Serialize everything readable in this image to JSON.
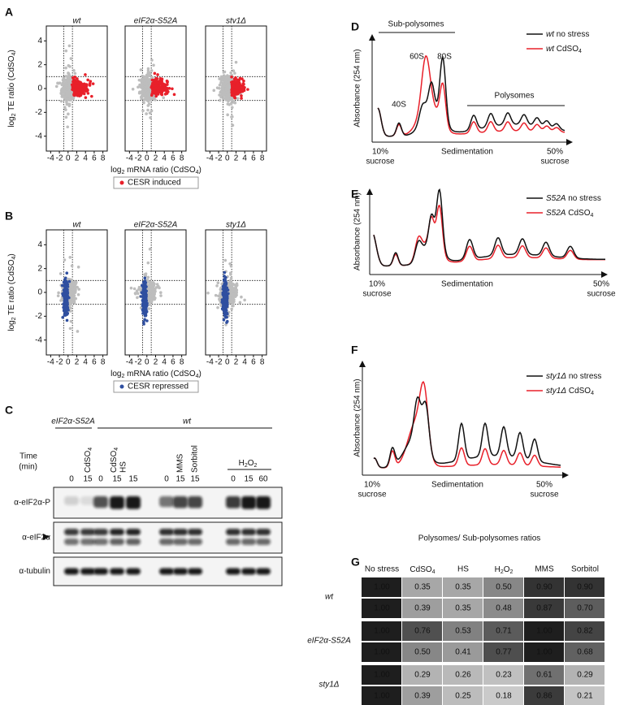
{
  "panel_a": {
    "label": "A",
    "titles": [
      "wt",
      "eIF2α-S52A",
      "stv1Δ"
    ],
    "y_label": [
      "log",
      "2",
      " TE ratio (CdSO",
      "4",
      ")"
    ],
    "x_label": [
      "log",
      "2",
      " mRNA ratio (CdSO",
      "4",
      ")"
    ],
    "yticks": [
      "4",
      "2",
      "0",
      "-2",
      "-4"
    ],
    "xticks": [
      "-4",
      "-2",
      "0",
      "2",
      "4",
      "6",
      "8"
    ],
    "legend": "CESR induced"
  },
  "panel_b": {
    "label": "B",
    "titles": [
      "wt",
      "eIF2α-S52A",
      "sty1Δ"
    ],
    "y_label": [
      "log",
      "2",
      " TE ratio (CdSO",
      "4",
      ")"
    ],
    "x_label": [
      "log",
      "2",
      " mRNA ratio (CdSO",
      "4",
      ")"
    ],
    "yticks": [
      "4",
      "2",
      "0",
      "-2",
      "-4"
    ],
    "xticks": [
      "-4",
      "-2",
      "0",
      "2",
      "4",
      "6",
      "8"
    ],
    "legend": "CESR repressed"
  },
  "panel_c": {
    "label": "C",
    "groups": [
      "eIF2α-S52A",
      "wt"
    ],
    "treatments": {
      "cdso4_a": [
        "CdSO",
        "4"
      ],
      "cdso4_b": [
        "CdSO",
        "4"
      ],
      "hs": "HS",
      "mms": "MMS",
      "sorbitol": "Sorbitol",
      "h2o2": [
        "H",
        "2",
        "O",
        "2"
      ]
    },
    "time_label": [
      "Time",
      "(min)"
    ],
    "times": [
      "0",
      "15",
      "0",
      "15",
      "15",
      "0",
      "15",
      "15",
      "0",
      "15",
      "60"
    ],
    "rows": [
      "α-eIF2α-P",
      "α-eIF2α",
      "α-tubulin"
    ]
  },
  "panel_d": {
    "label": "D",
    "header": "Sub-polysomes",
    "peaks": [
      "40S",
      "60S",
      "80S"
    ],
    "polysomes": "Polysomes",
    "y_label": "Absorbance (254 nm)",
    "x_left": [
      "10%",
      "sucrose"
    ],
    "x_mid": "Sedimentation",
    "x_right": [
      "50%",
      "sucrose"
    ],
    "legend": [
      {
        "strain": "wt",
        "condition": [
          " no stress"
        ]
      },
      {
        "strain": "wt",
        "condition": [
          " CdSO",
          "4"
        ]
      }
    ]
  },
  "panel_e": {
    "label": "E",
    "y_label": "Absorbance (254 nm)",
    "x_left": [
      "10%",
      "sucrose"
    ],
    "x_mid": "Sedimentation",
    "x_right": [
      "50%",
      "sucrose"
    ],
    "legend": [
      {
        "strain": "S52A",
        "condition": [
          " no stress"
        ]
      },
      {
        "strain": "S52A",
        "condition": [
          " CdSO",
          "4"
        ]
      }
    ]
  },
  "panel_f": {
    "label": "F",
    "y_label": "Absorbance (254 nm)",
    "x_left": [
      "10%",
      "sucrose"
    ],
    "x_mid": "Sedimentation",
    "x_right": [
      "50%",
      "sucrose"
    ],
    "legend": [
      {
        "strain": "sty1Δ",
        "condition": [
          " no stress"
        ]
      },
      {
        "strain": "sty1Δ",
        "condition": [
          " CdSO",
          "4"
        ]
      }
    ]
  },
  "panel_g": {
    "label": "G",
    "title": "Polysomes/ Sub-polysomes ratios",
    "columns": [
      "No stress",
      [
        "CdSO",
        "4"
      ],
      "HS",
      [
        "H",
        "2",
        "O",
        "2"
      ],
      "MMS",
      "Sorbitol"
    ],
    "groups": [
      {
        "strain": "wt",
        "rows": [
          [
            "1.00",
            "0.35",
            "0.35",
            "0.50",
            "0.90",
            "0.90"
          ],
          [
            "1.00",
            "0.39",
            "0.35",
            "0.48",
            "0.87",
            "0.70"
          ]
        ]
      },
      {
        "strain": "eIF2α-S52A",
        "rows": [
          [
            "1.00",
            "0.76",
            "0.53",
            "0.71",
            "1.00",
            "0.82"
          ],
          [
            "1.00",
            "0.50",
            "0.41",
            "0.77",
            "1.00",
            "0.68"
          ]
        ]
      },
      {
        "strain": "sty1Δ",
        "rows": [
          [
            "1.00",
            "0.29",
            "0.26",
            "0.23",
            "0.61",
            "0.29"
          ],
          [
            "1.00",
            "0.39",
            "0.25",
            "0.18",
            "0.86",
            "0.21"
          ]
        ]
      }
    ]
  }
}
